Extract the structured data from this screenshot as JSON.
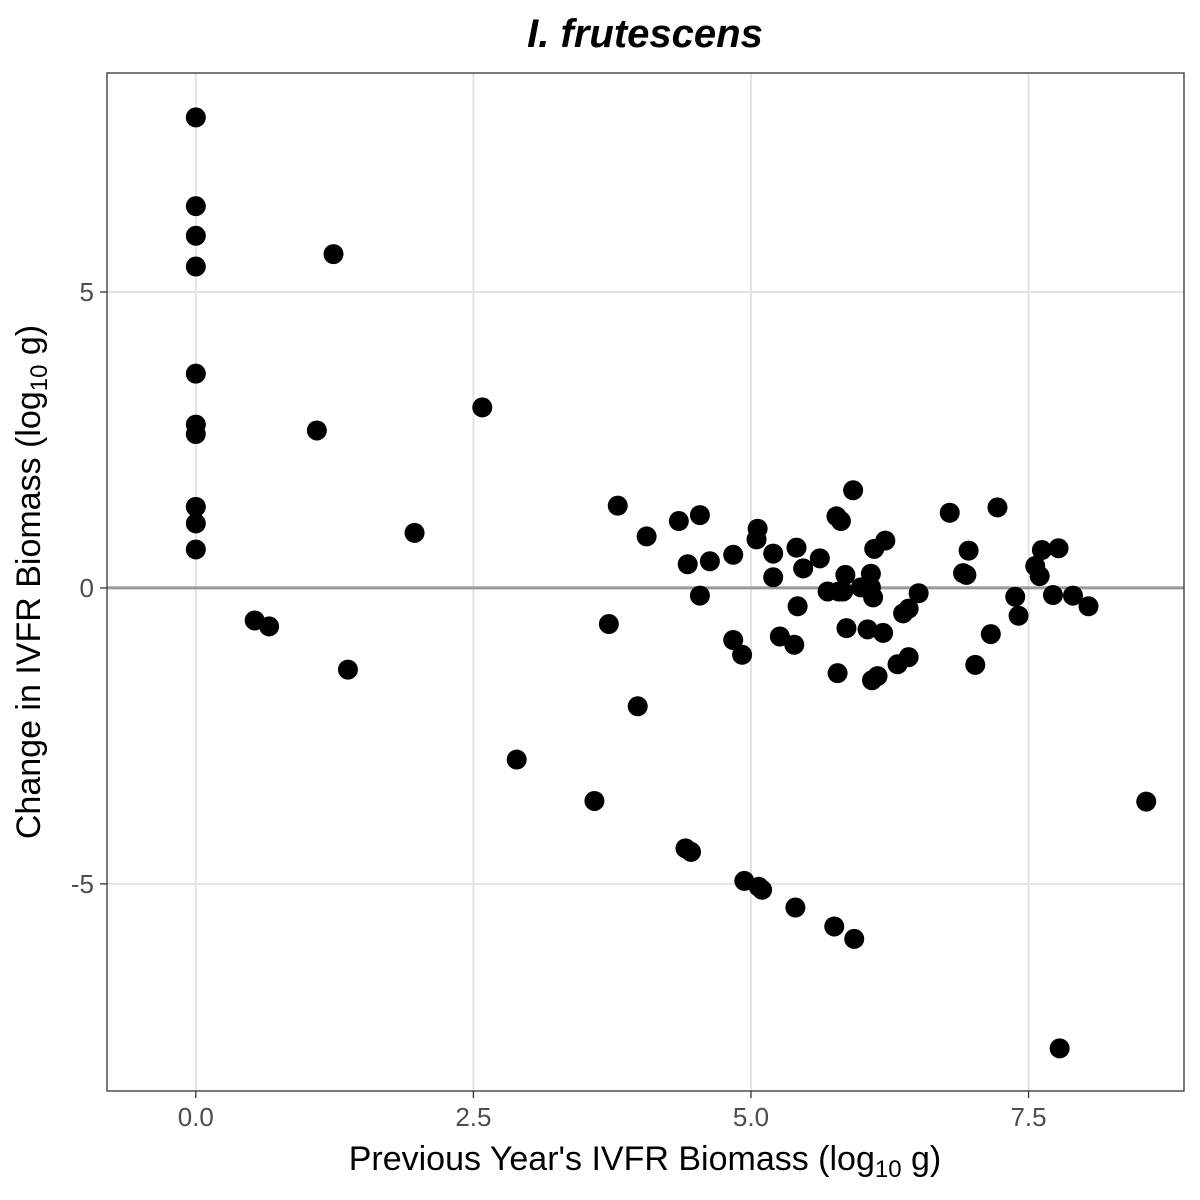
{
  "chart_data": {
    "type": "scatter",
    "title": "I. frutescens",
    "xlabel": {
      "main": "Previous Year's IVFR Biomass (log",
      "sub": "10",
      "tail": " g)"
    },
    "ylabel": {
      "main": "Change in IVFR Biomass (log",
      "sub": "10",
      "tail": " g)"
    },
    "xlim": [
      -0.8,
      8.9
    ],
    "ylim": [
      -8.5,
      8.7
    ],
    "x_ticks": [
      0.0,
      2.5,
      5.0,
      7.5
    ],
    "x_tick_labels": [
      "0.0",
      "2.5",
      "5.0",
      "7.5"
    ],
    "y_ticks": [
      -5,
      0,
      5
    ],
    "y_tick_labels": [
      "-5",
      "0",
      "5"
    ],
    "grid": true,
    "reference_line_y": 0,
    "colors": {
      "points": "#000000",
      "grid": "#e3e3e3",
      "reference_line": "#999999",
      "panel_border": "#333333"
    },
    "points": [
      {
        "x": 0.0,
        "y": 7.95
      },
      {
        "x": 0.0,
        "y": 6.45
      },
      {
        "x": 0.0,
        "y": 5.95
      },
      {
        "x": 0.0,
        "y": 5.43
      },
      {
        "x": 0.0,
        "y": 3.62
      },
      {
        "x": 0.0,
        "y": 2.76
      },
      {
        "x": 0.0,
        "y": 2.6
      },
      {
        "x": 0.0,
        "y": 1.37
      },
      {
        "x": 0.0,
        "y": 1.09
      },
      {
        "x": 0.0,
        "y": 0.65
      },
      {
        "x": 0.53,
        "y": -0.55
      },
      {
        "x": 0.66,
        "y": -0.65
      },
      {
        "x": 1.09,
        "y": 2.66
      },
      {
        "x": 1.24,
        "y": 5.64
      },
      {
        "x": 1.37,
        "y": -1.38
      },
      {
        "x": 1.97,
        "y": 0.93
      },
      {
        "x": 2.58,
        "y": 3.05
      },
      {
        "x": 2.89,
        "y": -2.9
      },
      {
        "x": 3.59,
        "y": -3.6
      },
      {
        "x": 3.72,
        "y": -0.61
      },
      {
        "x": 3.8,
        "y": 1.39
      },
      {
        "x": 3.98,
        "y": -2.0
      },
      {
        "x": 4.06,
        "y": 0.87
      },
      {
        "x": 4.35,
        "y": 1.13
      },
      {
        "x": 4.41,
        "y": -4.4
      },
      {
        "x": 4.43,
        "y": 0.4
      },
      {
        "x": 4.46,
        "y": -4.46
      },
      {
        "x": 4.54,
        "y": 1.23
      },
      {
        "x": 4.54,
        "y": -0.13
      },
      {
        "x": 4.63,
        "y": 0.45
      },
      {
        "x": 4.84,
        "y": 0.56
      },
      {
        "x": 4.84,
        "y": -0.88
      },
      {
        "x": 4.92,
        "y": -1.13
      },
      {
        "x": 4.94,
        "y": -4.95
      },
      {
        "x": 5.05,
        "y": 0.82
      },
      {
        "x": 5.06,
        "y": 1.0
      },
      {
        "x": 5.07,
        "y": -5.05
      },
      {
        "x": 5.1,
        "y": -5.1
      },
      {
        "x": 5.2,
        "y": 0.58
      },
      {
        "x": 5.2,
        "y": 0.18
      },
      {
        "x": 5.26,
        "y": -0.82
      },
      {
        "x": 5.39,
        "y": -0.96
      },
      {
        "x": 5.4,
        "y": -5.4
      },
      {
        "x": 5.41,
        "y": 0.68
      },
      {
        "x": 5.42,
        "y": -0.31
      },
      {
        "x": 5.47,
        "y": 0.33
      },
      {
        "x": 5.62,
        "y": 0.5
      },
      {
        "x": 5.69,
        "y": -0.06
      },
      {
        "x": 5.75,
        "y": -5.72
      },
      {
        "x": 5.77,
        "y": 1.21
      },
      {
        "x": 5.78,
        "y": -1.44
      },
      {
        "x": 5.79,
        "y": -0.06
      },
      {
        "x": 5.81,
        "y": 1.13
      },
      {
        "x": 5.83,
        "y": -0.06
      },
      {
        "x": 5.85,
        "y": 0.22
      },
      {
        "x": 5.86,
        "y": -0.68
      },
      {
        "x": 5.92,
        "y": 1.65
      },
      {
        "x": 5.93,
        "y": -5.93
      },
      {
        "x": 5.99,
        "y": 0.01
      },
      {
        "x": 6.05,
        "y": -0.7
      },
      {
        "x": 6.08,
        "y": 0.24
      },
      {
        "x": 6.08,
        "y": 0.01
      },
      {
        "x": 6.09,
        "y": -1.56
      },
      {
        "x": 6.1,
        "y": -0.16
      },
      {
        "x": 6.11,
        "y": 0.66
      },
      {
        "x": 6.14,
        "y": -1.49
      },
      {
        "x": 6.19,
        "y": -0.76
      },
      {
        "x": 6.21,
        "y": 0.8
      },
      {
        "x": 6.32,
        "y": -1.29
      },
      {
        "x": 6.37,
        "y": -0.43
      },
      {
        "x": 6.42,
        "y": -0.35
      },
      {
        "x": 6.42,
        "y": -1.17
      },
      {
        "x": 6.51,
        "y": -0.09
      },
      {
        "x": 6.79,
        "y": 1.27
      },
      {
        "x": 6.91,
        "y": 0.25
      },
      {
        "x": 6.94,
        "y": 0.22
      },
      {
        "x": 6.96,
        "y": 0.63
      },
      {
        "x": 7.02,
        "y": -1.3
      },
      {
        "x": 7.16,
        "y": -0.78
      },
      {
        "x": 7.22,
        "y": 1.36
      },
      {
        "x": 7.38,
        "y": -0.15
      },
      {
        "x": 7.41,
        "y": -0.47
      },
      {
        "x": 7.56,
        "y": 0.37
      },
      {
        "x": 7.6,
        "y": 0.2
      },
      {
        "x": 7.62,
        "y": 0.64
      },
      {
        "x": 7.72,
        "y": -0.12
      },
      {
        "x": 7.77,
        "y": 0.67
      },
      {
        "x": 7.78,
        "y": -7.78
      },
      {
        "x": 7.9,
        "y": -0.13
      },
      {
        "x": 8.04,
        "y": -0.31
      },
      {
        "x": 8.56,
        "y": -3.61
      }
    ]
  }
}
